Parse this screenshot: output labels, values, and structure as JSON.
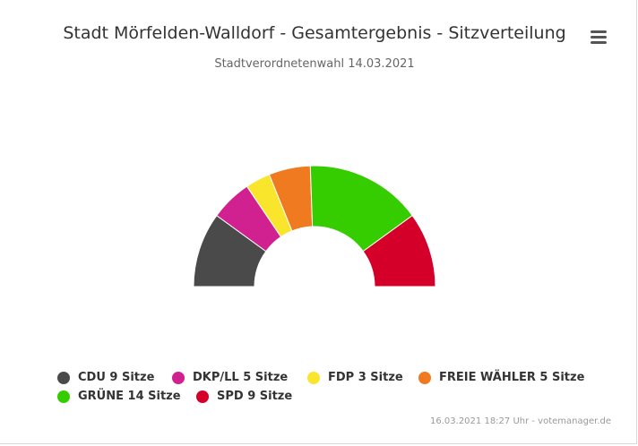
{
  "chart_data": {
    "type": "pie",
    "variant": "parliament-semicircle",
    "title": "Stadt Mörfelden-Walldorf - Gesamtergebnis - Sitzverteilung",
    "subtitle": "Stadtverordnetenwahl 14.03.2021",
    "legend_position": "bottom",
    "categories": [
      "CDU",
      "DKP/LL",
      "FDP",
      "FREIE WÄHLER",
      "GRÜNE",
      "SPD"
    ],
    "values": [
      9,
      5,
      3,
      5,
      14,
      9
    ],
    "legend_labels": [
      "CDU 9 Sitze",
      "DKP/LL 5 Sitze",
      "FDP 3 Sitze",
      "FREIE WÄHLER 5 Sitze",
      "GRÜNE 14 Sitze",
      "SPD 9 Sitze"
    ],
    "colors": [
      "#4a4a4a",
      "#d1208f",
      "#f9e62c",
      "#ef7a1f",
      "#35cd00",
      "#d4002a"
    ]
  },
  "credits": "16.03.2021 18:27 Uhr - votemanager.de",
  "icons": {
    "menu": "hamburger-menu-icon"
  }
}
